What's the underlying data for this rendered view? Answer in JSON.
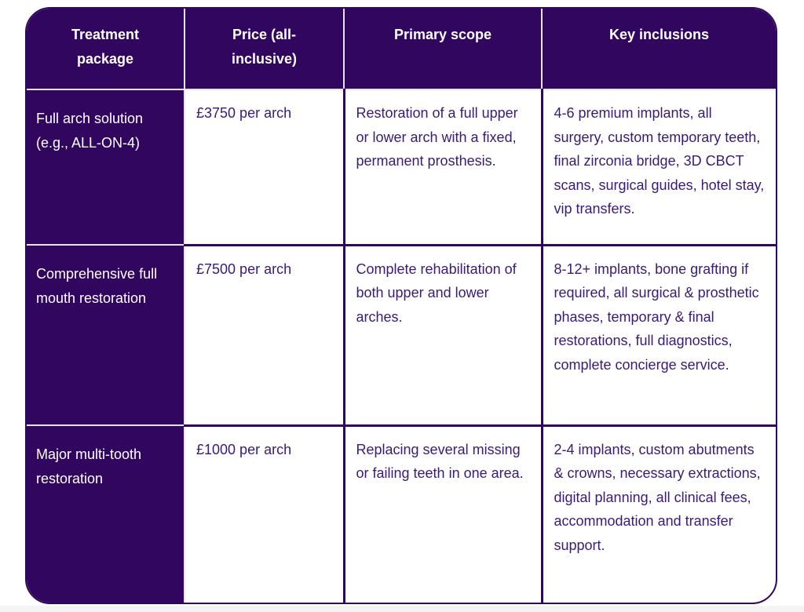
{
  "table": {
    "headers": [
      "Treatment package",
      "Price (all-inclusive)",
      "Primary scope",
      "Key inclusions"
    ],
    "rows": [
      {
        "package": "Full arch solution (e.g., ALL-ON-4)",
        "price": "£3750 per arch",
        "scope": "Restoration of a full upper or lower arch with a fixed, permanent prosthesis.",
        "inclusions": "4-6 premium implants, all surgery, custom temporary teeth, final zirconia bridge, 3D CBCT scans, surgical guides, hotel stay, vip transfers."
      },
      {
        "package": "Comprehensive full mouth restoration",
        "price": "£7500 per arch",
        "scope": "Complete rehabilitation of both upper and lower arches.",
        "inclusions": "8-12+ implants, bone grafting if required, all surgical & prosthetic phases, temporary & final restorations, full diagnostics, complete concierge service."
      },
      {
        "package": "Major multi-tooth restoration",
        "price": "£1000 per arch",
        "scope": "Replacing several missing or failing teeth in one area.",
        "inclusions": "2-4 implants, custom abutments & crowns, necessary extractions, digital planning, all clinical fees, accommodation and transfer support."
      }
    ]
  },
  "colors": {
    "brand": "#31065f",
    "text": "#3a1a78"
  }
}
